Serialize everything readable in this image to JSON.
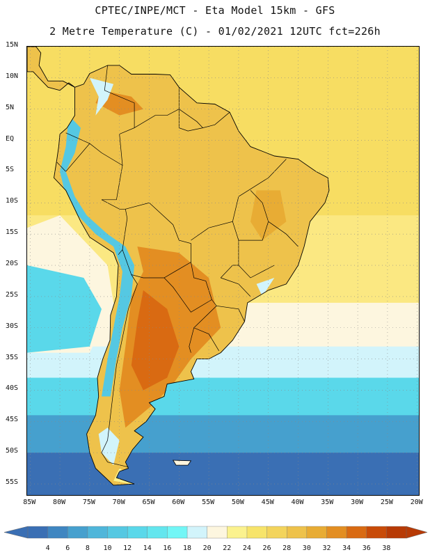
{
  "title_line1": "CPTEC/INPE/MCT -  Eta Model 15km - GFS",
  "title_line2": "2 Metre Temperature (C) - 01/02/2021 12UTC fct=226h",
  "lat_labels": [
    "15N",
    "10N",
    "5N",
    "EQ",
    "5S",
    "10S",
    "15S",
    "20S",
    "25S",
    "30S",
    "35S",
    "40S",
    "45S",
    "50S",
    "55S"
  ],
  "lon_labels": [
    "85W",
    "80W",
    "75W",
    "70W",
    "65W",
    "60W",
    "55W",
    "50W",
    "45W",
    "40W",
    "35W",
    "30W",
    "25W",
    "20W"
  ],
  "colorbar": {
    "labels": [
      "4",
      "6",
      "8",
      "10",
      "12",
      "14",
      "16",
      "18",
      "20",
      "22",
      "24",
      "26",
      "28",
      "30",
      "32",
      "34",
      "36",
      "38"
    ],
    "colors": [
      "#3a6fb4",
      "#3f86c1",
      "#46a0ce",
      "#4fb6da",
      "#55c8e2",
      "#5ad8ea",
      "#63e6ee",
      "#72f6f6",
      "#d2f4fb",
      "#fdf6df",
      "#fbf28e",
      "#f7e46a",
      "#f3d45c",
      "#eec24b",
      "#e8ac34",
      "#e38e22",
      "#d96a12",
      "#c84b08",
      "#b73a05"
    ],
    "left_end_color": "#3a6fb4",
    "right_end_color": "#b73a05"
  },
  "map": {
    "variable": "2 Metre Temperature (C)",
    "lat_range": [
      15,
      -57
    ],
    "lon_range": [
      -85.5,
      -19.5
    ],
    "grid": "dotted",
    "ocean_colors": {
      "warm_north": "#f7dd62",
      "tropical": "#fbe882",
      "subtropical": "#fdf6df",
      "mid": "#d2f4fb",
      "cold": "#5ad8ea",
      "colder": "#46a0ce",
      "coldest": "#3a6fb4"
    },
    "land_colors": {
      "andes_cold": "#55c8e2",
      "andes_cool": "#d2f4fb",
      "warm": "#eec24b",
      "hot": "#e38e22",
      "hottest": "#d96a12"
    }
  }
}
